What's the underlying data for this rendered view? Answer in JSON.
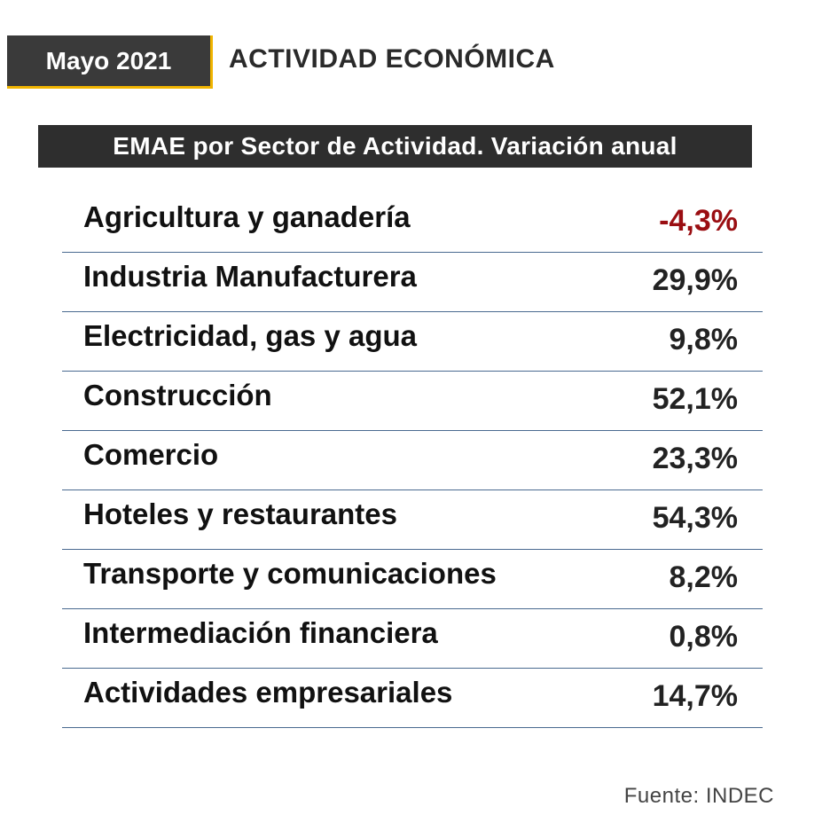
{
  "header": {
    "date": "Mayo 2021",
    "title": "ACTIVIDAD ECONÓMICA"
  },
  "subtitle": "EMAE por Sector de Actividad. Variación anual",
  "colors": {
    "accent": "#f0b400",
    "negative": "#9a0e12",
    "dark_box": "#3a3a3a",
    "divider": "#4a6a90"
  },
  "rows": [
    {
      "label": "Agricultura y ganadería",
      "value": "-4,3%",
      "negative": true
    },
    {
      "label": "Industria Manufacturera",
      "value": "29,9%",
      "negative": false
    },
    {
      "label": "Electricidad, gas y agua",
      "value": "9,8%",
      "negative": false
    },
    {
      "label": "Construcción",
      "value": "52,1%",
      "negative": false
    },
    {
      "label": "Comercio",
      "value": "23,3%",
      "negative": false
    },
    {
      "label": "Hoteles y restaurantes",
      "value": "54,3%",
      "negative": false
    },
    {
      "label": "Transporte y comunicaciones",
      "value": "8,2%",
      "negative": false
    },
    {
      "label": "Intermediación financiera",
      "value": "0,8%",
      "negative": false
    },
    {
      "label": "Actividades empresariales",
      "value": "14,7%",
      "negative": false
    }
  ],
  "source": "Fuente: INDEC"
}
